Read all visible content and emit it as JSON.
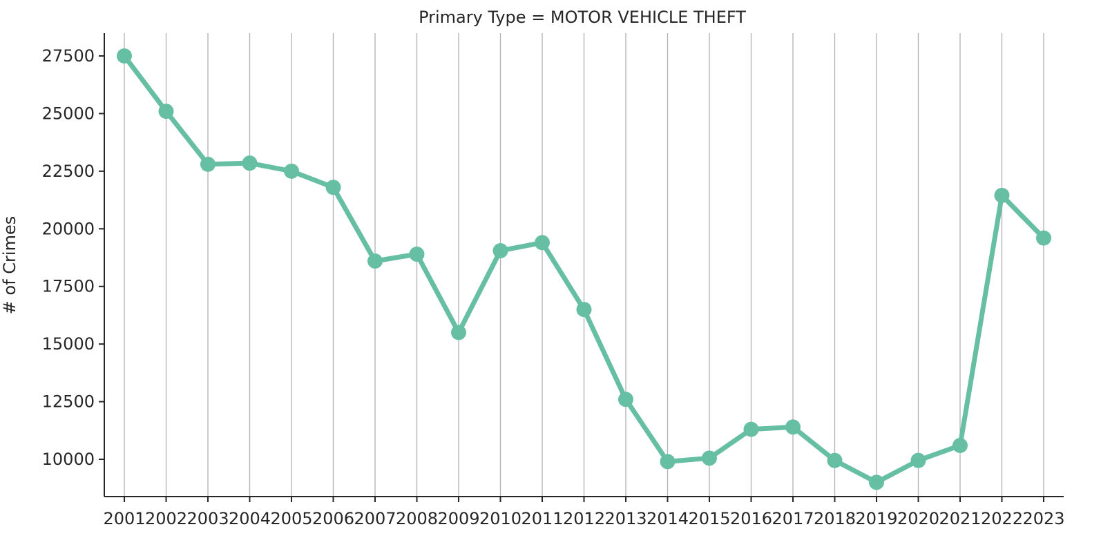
{
  "chart_data": {
    "type": "line",
    "title": "Primary Type = MOTOR VEHICLE THEFT",
    "xlabel": "",
    "ylabel": "# of Crimes",
    "x": [
      "2001",
      "2002",
      "2003",
      "2004",
      "2005",
      "2006",
      "2007",
      "2008",
      "2009",
      "2010",
      "2011",
      "2012",
      "2013",
      "2014",
      "2015",
      "2016",
      "2017",
      "2018",
      "2019",
      "2020",
      "2021",
      "2022",
      "2023"
    ],
    "series": [
      {
        "values": [
          27500,
          25100,
          22800,
          22850,
          22500,
          21800,
          18600,
          18900,
          15500,
          19050,
          19400,
          16500,
          12600,
          9900,
          10050,
          11300,
          11400,
          9950,
          9000,
          9950,
          10600,
          21450,
          19600
        ],
        "color": "#66bfa3"
      }
    ],
    "ylim": [
      8000,
      28000
    ],
    "yticks": [
      10000,
      12500,
      15000,
      17500,
      20000,
      22500,
      25000,
      27500
    ],
    "ytick_labels": [
      "10000",
      "12500",
      "15000",
      "17500",
      "20000",
      "22500",
      "25000",
      "27500"
    ],
    "grid": "vertical",
    "grid_color": "#b0b0b0",
    "legend": "none"
  }
}
